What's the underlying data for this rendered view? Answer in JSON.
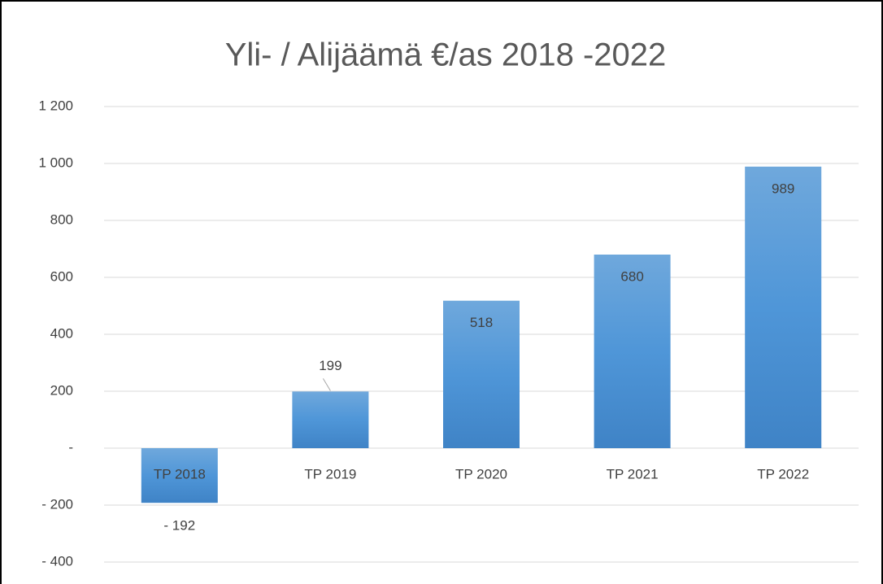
{
  "chart_data": {
    "type": "bar",
    "title": "Yli- / Alijäämä €/as 2018 -2022",
    "categories": [
      "TP 2018",
      "TP 2019",
      "TP 2020",
      "TP 2021",
      "TP 2022"
    ],
    "values": [
      -192,
      199,
      518,
      680,
      989
    ],
    "value_labels": [
      "- 192",
      "199",
      "518",
      "680",
      "989"
    ],
    "color": "#5b9bd5",
    "ylim": [
      -400,
      1200
    ],
    "yticks": [
      {
        "value": -400,
        "label": "- 400"
      },
      {
        "value": -200,
        "label": "- 200"
      },
      {
        "value": 0,
        "label": "-"
      },
      200,
      400,
      600,
      800,
      {
        "value": 1000,
        "label": "1 000"
      },
      {
        "value": 1200,
        "label": "1 200"
      }
    ],
    "grid": true
  }
}
